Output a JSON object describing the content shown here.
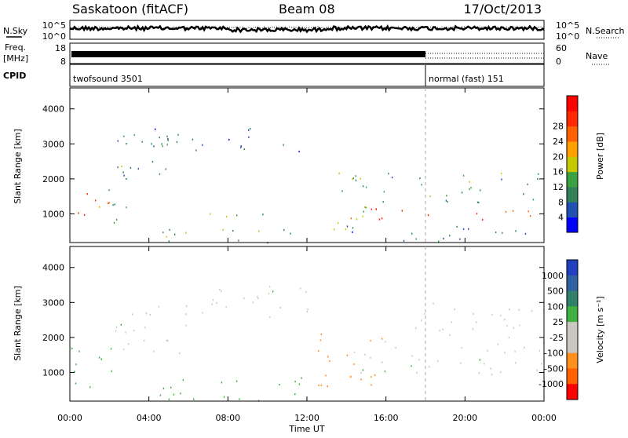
{
  "header": {
    "station": "Saskatoon (fitACF)",
    "beam": "Beam 08",
    "date": "17/Oct/2013"
  },
  "side_labels": {
    "nsky": "N.Sky",
    "freq_line1": "Freq.",
    "freq_line2": "[MHz]",
    "cpid": "CPID",
    "nsearch": "N.Search",
    "nave": "Nave"
  },
  "noise_axis": {
    "left_top": "10^5",
    "left_bottom": "10^0",
    "right_top": "10^5",
    "right_bottom": "10^0"
  },
  "freq_axis": {
    "left_top": "18",
    "left_bottom": "8",
    "right_top": "60",
    "right_bottom": "0"
  },
  "cpid_segments": [
    {
      "label": "twofsound 3501",
      "start_hour": 0,
      "end_hour": 18
    },
    {
      "label": "normal (fast) 151",
      "start_hour": 18,
      "end_hour": 24
    }
  ],
  "x_axis": {
    "title": "Time UT",
    "ticks": [
      "00:00",
      "04:00",
      "08:00",
      "12:00",
      "16:00",
      "20:00",
      "00:00"
    ],
    "range_hours": [
      0,
      24
    ]
  },
  "y_axis": {
    "title": "Slant Range [km]",
    "ticks": [
      "1000",
      "2000",
      "3000",
      "4000"
    ],
    "range_km": [
      180,
      4600
    ]
  },
  "power_colorbar": {
    "title": "Power [dB]",
    "labels": [
      "4",
      "8",
      "12",
      "16",
      "20",
      "24",
      "28"
    ],
    "colors": [
      "#0000ff",
      "#2050b0",
      "#30805a",
      "#3aa040",
      "#c8c800",
      "#ffa000",
      "#ff6000",
      "#ff2800",
      "#ff0000"
    ]
  },
  "velocity_colorbar": {
    "title": "Velocity [m s⁻¹]",
    "labels": [
      "1000",
      "500",
      "100",
      "25",
      "-25",
      "-100",
      "-500",
      "-1000"
    ],
    "colors": [
      "#2040c0",
      "#3060a0",
      "#30806a",
      "#40b040",
      "#c8c8c0",
      "#c8c8c0",
      "#ff9020",
      "#ff6000",
      "#ff0000"
    ]
  },
  "colors": {
    "trace": "#000000",
    "marker": "#aaaaaa"
  },
  "chart_data": [
    {
      "type": "heatmap",
      "panel": "power",
      "x_unit": "hour UT",
      "y_unit": "km",
      "value_unit": "dB",
      "scatter_regions": [
        {
          "x": [
            0,
            2
          ],
          "y": [
            700,
            1700
          ],
          "value": 26
        },
        {
          "x": [
            1.5,
            3.2
          ],
          "y": [
            600,
            2500
          ],
          "value": 14
        },
        {
          "x": [
            2,
            5
          ],
          "y": [
            2000,
            3400
          ],
          "value": 10
        },
        {
          "x": [
            4,
            12.5
          ],
          "y": [
            2800,
            3500
          ],
          "value": 8
        },
        {
          "x": [
            4.5,
            12
          ],
          "y": [
            200,
            700
          ],
          "value": 14
        },
        {
          "x": [
            7,
            10
          ],
          "y": [
            900,
            1300
          ],
          "value": 16
        },
        {
          "x": [
            13,
            15
          ],
          "y": [
            500,
            2300
          ],
          "value": 18
        },
        {
          "x": [
            14,
            24
          ],
          "y": [
            850,
            1250
          ],
          "value": 28
        },
        {
          "x": [
            14,
            24
          ],
          "y": [
            1300,
            2200
          ],
          "value": 12
        },
        {
          "x": [
            14,
            24
          ],
          "y": [
            200,
            700
          ],
          "value": 8
        }
      ]
    },
    {
      "type": "heatmap",
      "panel": "velocity",
      "x_unit": "hour UT",
      "y_unit": "km",
      "value_unit": "m/s",
      "scatter_regions": [
        {
          "x": [
            0,
            2.5
          ],
          "y": [
            600,
            1800
          ],
          "value": 60
        },
        {
          "x": [
            2,
            6
          ],
          "y": [
            1500,
            3000
          ],
          "value": 0
        },
        {
          "x": [
            4.5,
            12
          ],
          "y": [
            200,
            900
          ],
          "value": 70
        },
        {
          "x": [
            6,
            12.5
          ],
          "y": [
            2600,
            3500
          ],
          "value": 0
        },
        {
          "x": [
            12.5,
            16
          ],
          "y": [
            600,
            2200
          ],
          "value": -300
        },
        {
          "x": [
            14,
            24
          ],
          "y": [
            900,
            1900
          ],
          "value": 0
        },
        {
          "x": [
            17,
            24
          ],
          "y": [
            2000,
            3000
          ],
          "value": -60
        }
      ]
    }
  ]
}
